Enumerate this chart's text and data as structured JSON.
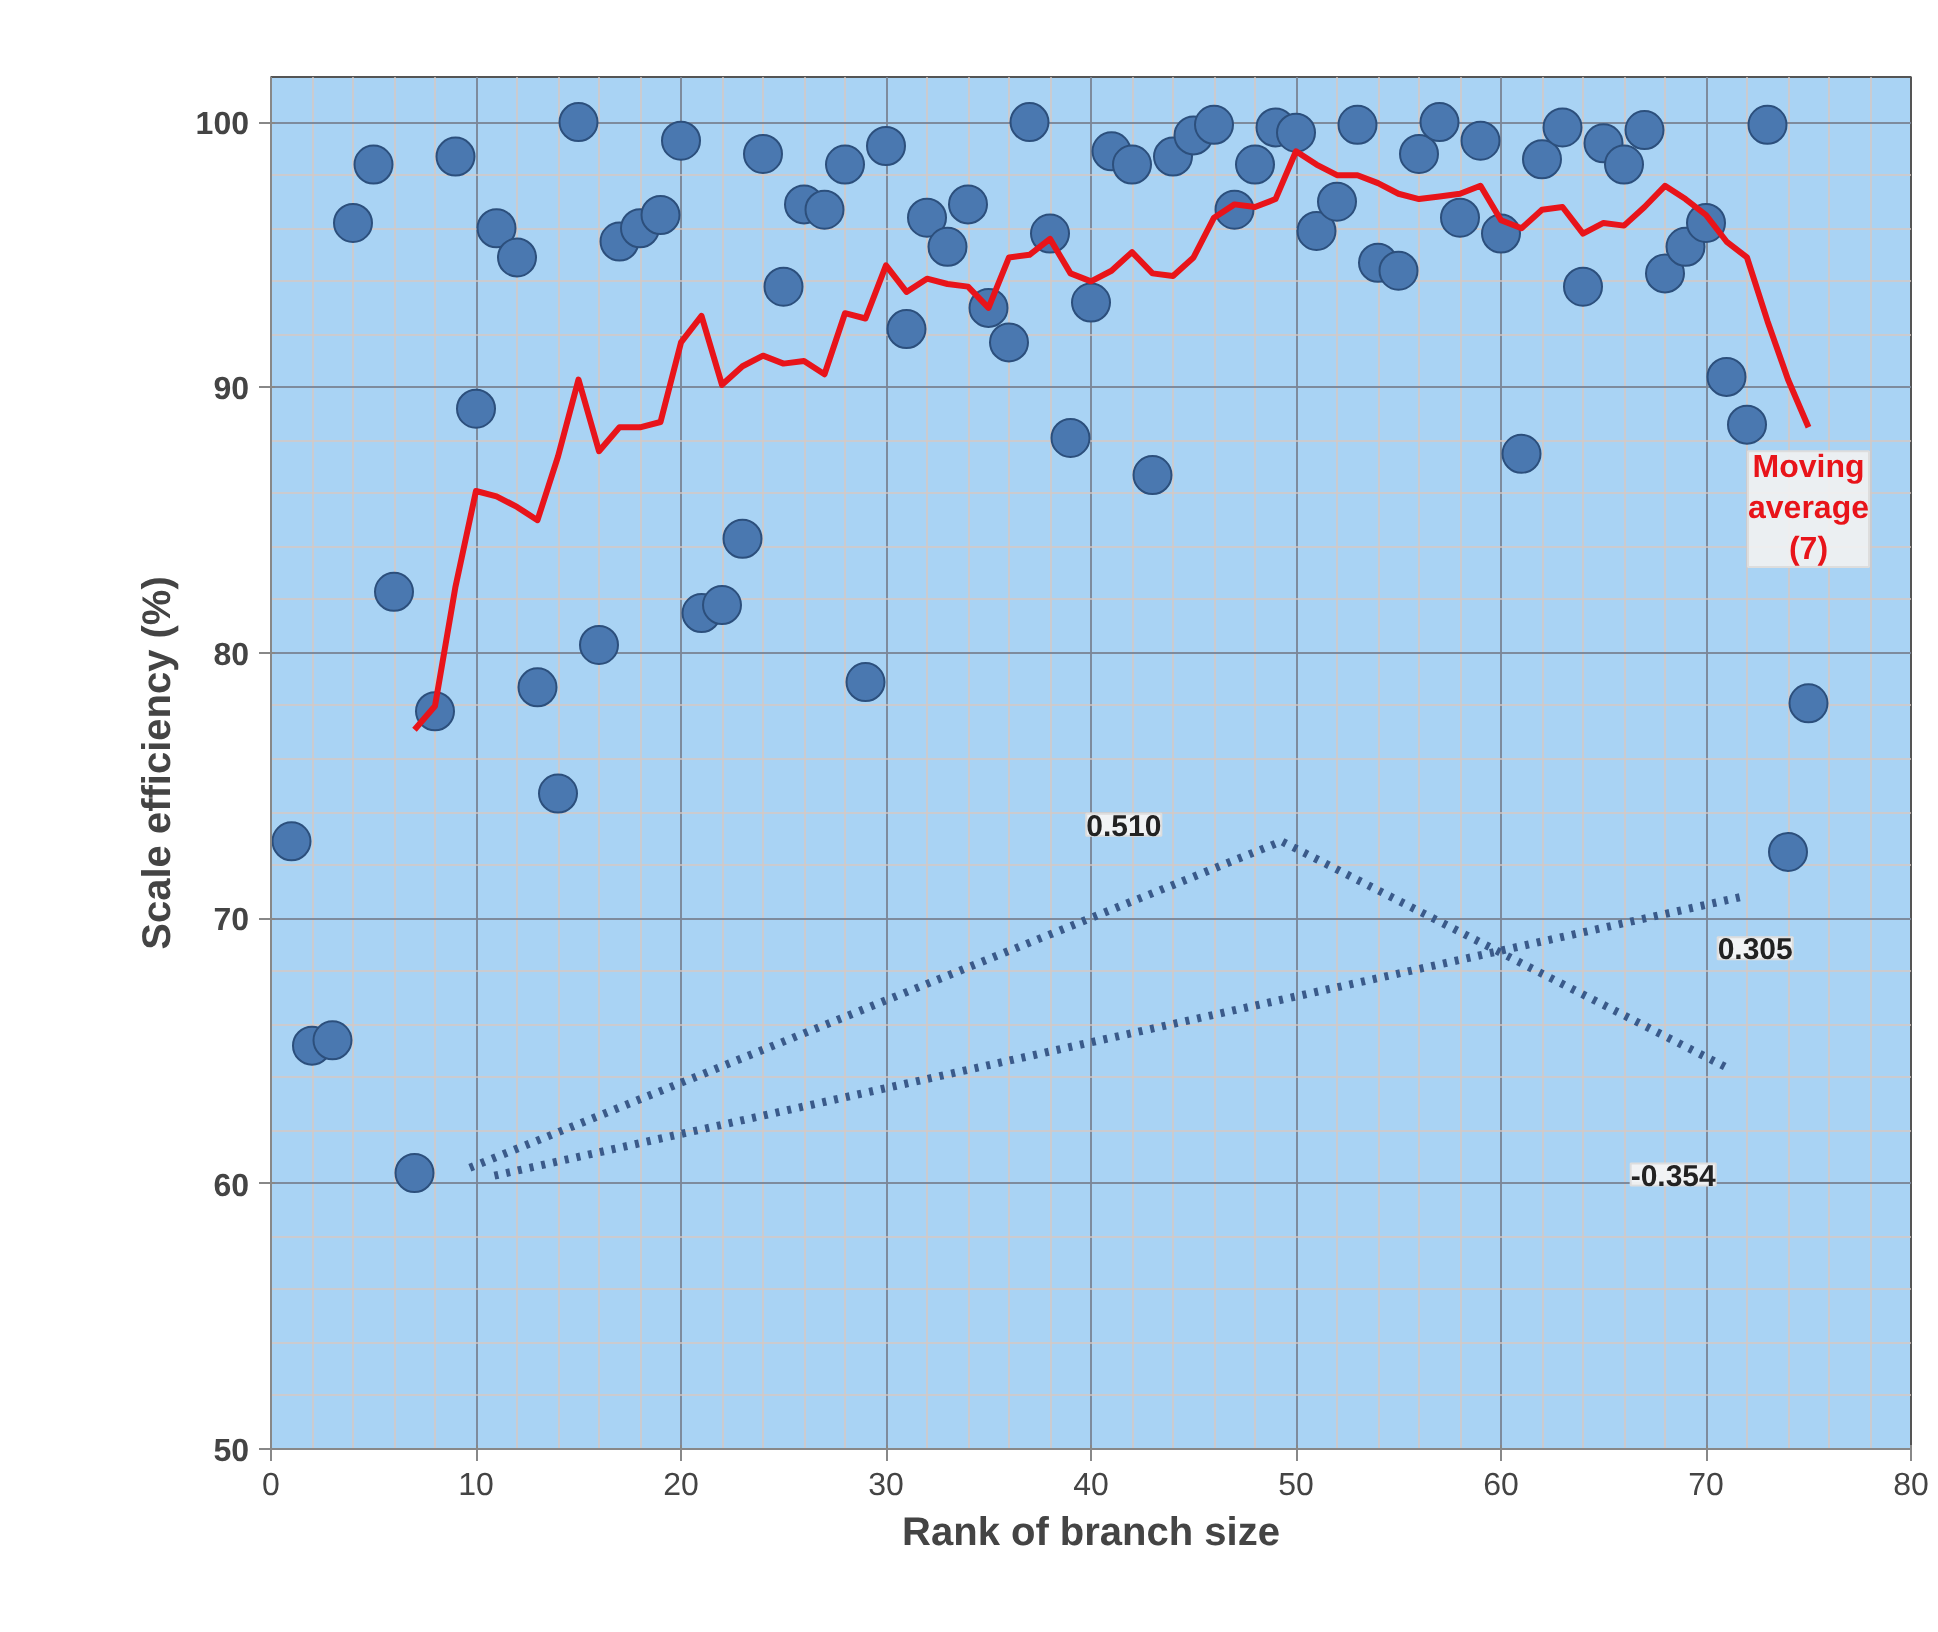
{
  "chart_data": {
    "type": "scatter",
    "xlabel": "Rank of branch size",
    "ylabel": "Scale efficiency (%)",
    "xlim": [
      0,
      80
    ],
    "xticks": [
      0,
      10,
      20,
      30,
      40,
      50,
      60,
      70,
      80
    ],
    "ylim": [
      50,
      101.7
    ],
    "yticks": [
      50,
      60,
      70,
      80,
      90,
      100
    ],
    "grid": true,
    "legend": false,
    "series": [
      {
        "marker": "circle",
        "color": "#4a78b0",
        "x": [
          1,
          2,
          3,
          4,
          5,
          6,
          7,
          8,
          9,
          10,
          11,
          12,
          13,
          14,
          15,
          16,
          17,
          18,
          19,
          20,
          21,
          22,
          23,
          24,
          25,
          26,
          27,
          28,
          29,
          30,
          31,
          32,
          33,
          34,
          35,
          36,
          37,
          38,
          39,
          40,
          41,
          42,
          43,
          44,
          45,
          46,
          47,
          48,
          49,
          50,
          51,
          52,
          53,
          54,
          55,
          56,
          57,
          58,
          59,
          60,
          61,
          62,
          63,
          64,
          65,
          66,
          67,
          68,
          69,
          70,
          71,
          72,
          73,
          74,
          75
        ],
        "values": [
          72.9,
          65.2,
          65.4,
          96.2,
          98.4,
          82.3,
          60.4,
          77.8,
          98.7,
          89.2,
          96.0,
          94.9,
          78.7,
          74.7,
          100.0,
          80.3,
          95.5,
          96.0,
          96.5,
          99.3,
          81.5,
          81.8,
          84.3,
          98.8,
          93.8,
          96.9,
          96.7,
          98.4,
          78.9,
          99.1,
          92.2,
          96.4,
          95.3,
          96.9,
          93.0,
          91.7,
          100.0,
          95.8,
          88.1,
          93.2,
          98.9,
          98.4,
          86.7,
          98.7,
          99.5,
          99.9,
          96.7,
          98.4,
          99.8,
          99.6,
          95.9,
          97.0,
          99.9,
          94.7,
          94.4,
          98.8,
          100.0,
          96.4,
          99.3,
          95.8,
          87.5,
          98.6,
          99.8,
          93.8,
          99.2,
          98.4,
          99.7,
          94.3,
          95.3,
          96.2,
          90.4,
          88.6,
          99.9,
          72.5,
          78.1
        ]
      },
      {
        "type": "line",
        "name": "Moving average (7)",
        "color": "#e8141a",
        "line_style": "solid",
        "x": [
          7,
          8,
          9,
          10,
          11,
          12,
          13,
          14,
          15,
          16,
          17,
          18,
          19,
          20,
          21,
          22,
          23,
          24,
          25,
          26,
          27,
          28,
          29,
          30,
          31,
          32,
          33,
          34,
          35,
          36,
          37,
          38,
          39,
          40,
          41,
          42,
          43,
          44,
          45,
          46,
          47,
          48,
          49,
          50,
          51,
          52,
          53,
          54,
          55,
          56,
          57,
          58,
          59,
          60,
          61,
          62,
          63,
          64,
          65,
          66,
          67,
          68,
          69,
          70,
          71,
          72,
          73,
          74,
          75
        ],
        "values": [
          77.1,
          78.0,
          82.5,
          86.1,
          85.9,
          85.5,
          85.0,
          87.4,
          90.3,
          87.6,
          88.5,
          88.5,
          88.7,
          91.7,
          92.7,
          90.1,
          90.8,
          91.2,
          90.9,
          91.0,
          90.5,
          92.8,
          92.6,
          94.6,
          93.6,
          94.1,
          93.9,
          93.8,
          93.0,
          94.9,
          95.0,
          95.6,
          94.3,
          94.0,
          94.4,
          95.1,
          94.3,
          94.2,
          94.9,
          96.4,
          96.9,
          96.8,
          97.1,
          98.9,
          98.4,
          98.0,
          98.0,
          97.7,
          97.3,
          97.1,
          97.2,
          97.3,
          97.6,
          96.3,
          96.0,
          96.7,
          96.8,
          95.8,
          96.2,
          96.1,
          96.8,
          97.6,
          97.1,
          96.5,
          95.5,
          94.9,
          92.5,
          90.3,
          88.5
        ]
      },
      {
        "type": "line",
        "color": "#3a5a8a",
        "line_style": "dotted",
        "x": [
          9.7,
          49.3,
          71.2
        ],
        "values": [
          60.6,
          72.9,
          64.3
        ]
      },
      {
        "type": "line",
        "color": "#3a5a8a",
        "line_style": "dotted",
        "x": [
          10.9,
          71.7
        ],
        "values": [
          60.3,
          70.8
        ]
      }
    ],
    "annotations": [
      "0.510",
      "0.305",
      "-0.354"
    ]
  }
}
